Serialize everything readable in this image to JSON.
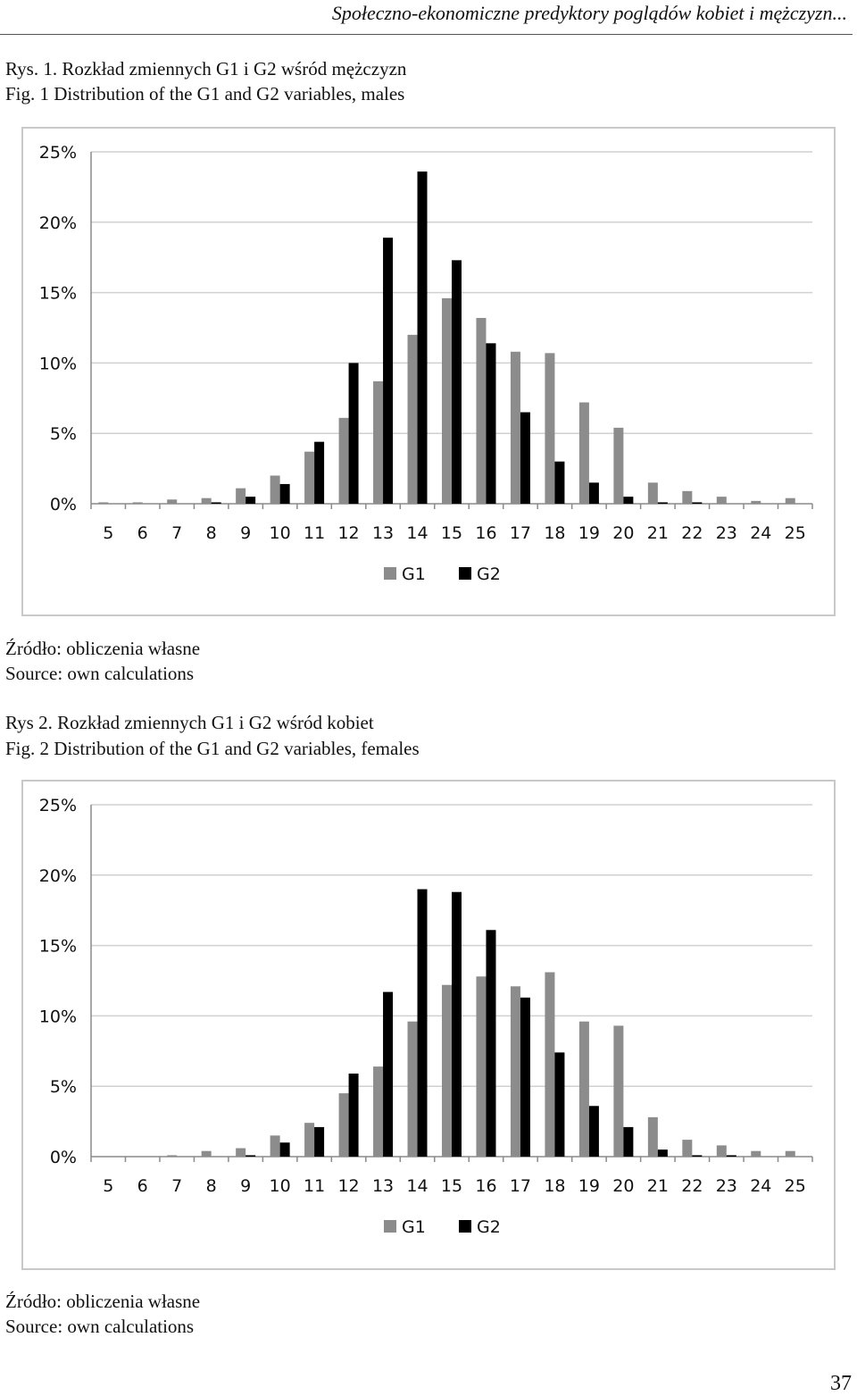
{
  "header": {
    "running_title": "Społeczno-ekonomiczne predyktory poglądów kobiet i mężczyzn..."
  },
  "figures": [
    {
      "caption_pl": "Rys. 1.  Rozkład zmiennych G1 i G2 wśród mężczyzn",
      "caption_en": "Fig. 1   Distribution of the G1 and G2 variables, males",
      "source_pl": "Źródło: obliczenia własne",
      "source_en": "Source: own calculations"
    },
    {
      "caption_pl": "Rys 2.  Rozkład zmiennych G1 i G2 wśród kobiet",
      "caption_en": "Fig. 2   Distribution of the G1 and G2 variables, females",
      "source_pl": "Źródło: obliczenia własne",
      "source_en": "Source: own calculations"
    }
  ],
  "colors": {
    "G1": "#8c8c8c",
    "G2": "#000000",
    "grid": "#d0d0d0",
    "axis": "#8a8a8a"
  },
  "chart_data": [
    {
      "type": "bar",
      "title": "",
      "categories": [
        "5",
        "6",
        "7",
        "8",
        "9",
        "10",
        "11",
        "12",
        "13",
        "14",
        "15",
        "16",
        "17",
        "18",
        "19",
        "20",
        "21",
        "22",
        "23",
        "24",
        "25"
      ],
      "series": [
        {
          "name": "G1",
          "values": [
            0.1,
            0.1,
            0.3,
            0.4,
            1.1,
            2.0,
            3.7,
            6.1,
            8.7,
            12.0,
            14.6,
            13.2,
            10.8,
            10.7,
            7.2,
            5.4,
            1.5,
            0.9,
            0.5,
            0.2,
            0.4
          ]
        },
        {
          "name": "G2",
          "values": [
            0,
            0,
            0,
            0.1,
            0.5,
            1.4,
            4.4,
            10.0,
            18.9,
            23.6,
            17.3,
            11.4,
            6.5,
            3.0,
            1.5,
            0.5,
            0.1,
            0.1,
            0,
            0,
            0
          ]
        }
      ],
      "yticks": [
        "0%",
        "5%",
        "10%",
        "15%",
        "20%",
        "25%"
      ],
      "ylim": [
        0,
        25
      ],
      "grid": true,
      "legend": "bottom-center"
    },
    {
      "type": "bar",
      "title": "",
      "categories": [
        "5",
        "6",
        "7",
        "8",
        "9",
        "10",
        "11",
        "12",
        "13",
        "14",
        "15",
        "16",
        "17",
        "18",
        "19",
        "20",
        "21",
        "22",
        "23",
        "24",
        "25"
      ],
      "series": [
        {
          "name": "G1",
          "values": [
            0,
            0,
            0.1,
            0.4,
            0.6,
            1.5,
            2.4,
            4.5,
            6.4,
            9.6,
            12.2,
            12.8,
            12.1,
            13.1,
            9.6,
            9.3,
            2.8,
            1.2,
            0.8,
            0.4,
            0.4
          ]
        },
        {
          "name": "G2",
          "values": [
            0,
            0,
            0,
            0,
            0.1,
            1.0,
            2.1,
            5.9,
            11.7,
            19.0,
            18.8,
            16.1,
            11.3,
            7.4,
            3.6,
            2.1,
            0.5,
            0.1,
            0.1,
            0,
            0
          ]
        }
      ],
      "yticks": [
        "0%",
        "5%",
        "10%",
        "15%",
        "20%",
        "25%"
      ],
      "ylim": [
        0,
        25
      ],
      "grid": true,
      "legend": "bottom-center"
    }
  ],
  "page_number": "37"
}
